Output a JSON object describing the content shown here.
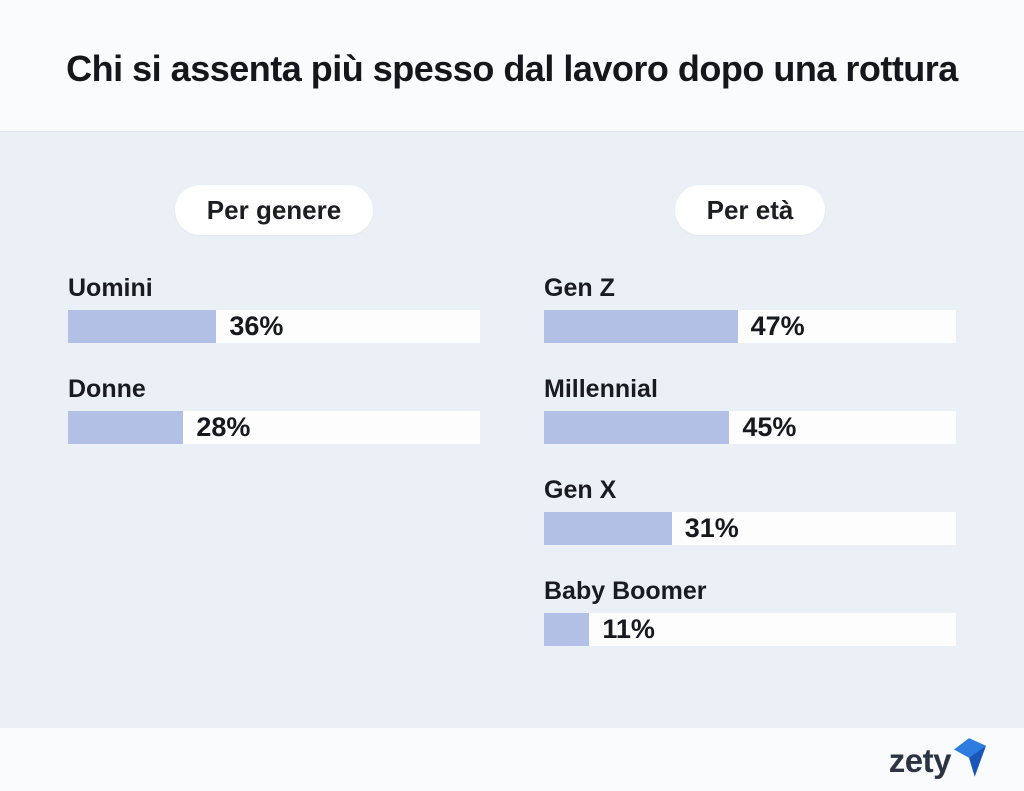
{
  "title": "Chi si assenta più spesso dal lavoro dopo una rottura",
  "colors": {
    "bar_fill": "#b3c0e6",
    "bar_track": "#fdfdfe",
    "background": "#ebeff6",
    "panel": "#f9fbfd",
    "text": "#16181d",
    "logo_text": "#2b3442",
    "logo_blue": "#2e7ce0",
    "logo_blue_dark": "#1b55b8"
  },
  "chart_data": [
    {
      "type": "bar",
      "orientation": "horizontal",
      "title": "Per genere",
      "categories": [
        "Uomini",
        "Donne"
      ],
      "values": [
        36,
        28
      ],
      "unit": "%",
      "xlim": [
        0,
        100
      ],
      "grid": false,
      "legend": "none",
      "value_labels": "inside-track-after-fill"
    },
    {
      "type": "bar",
      "orientation": "horizontal",
      "title": "Per età",
      "categories": [
        "Gen Z",
        "Millennial",
        "Gen X",
        "Baby Boomer"
      ],
      "values": [
        47,
        45,
        31,
        11
      ],
      "unit": "%",
      "xlim": [
        0,
        100
      ],
      "grid": false,
      "legend": "none",
      "value_labels": "inside-track-after-fill"
    }
  ],
  "footer": {
    "brand": "zety"
  }
}
